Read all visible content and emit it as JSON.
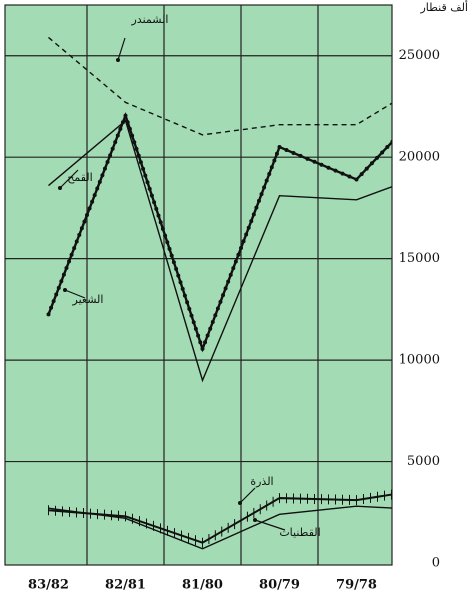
{
  "chart_data": {
    "type": "line",
    "y_axis_label": "ألف قنطار",
    "categories": [
      "83/82",
      "82/81",
      "81/80",
      "80/79",
      "79/78",
      null
    ],
    "series": [
      {
        "name": "الشمندر",
        "color": "#111111",
        "linestyle": "dashed",
        "values": [
          25900,
          22700,
          21100,
          21600,
          21600,
          23900
        ]
      },
      {
        "name": "القمح",
        "color": "#111111",
        "linestyle": "solid",
        "values": [
          18600,
          21800,
          9000,
          18100,
          17900,
          19300
        ]
      },
      {
        "name": "الشعير",
        "color": "#111111",
        "linestyle": "dotted",
        "values": [
          12250,
          22050,
          10550,
          20500,
          18900,
          22900
        ]
      },
      {
        "name": "الذرة",
        "color": "#111111",
        "linestyle": "crossed",
        "values": [
          2600,
          2300,
          1000,
          3200,
          3100,
          3700
        ]
      },
      {
        "name": "القطنيات",
        "color": "#111111",
        "linestyle": "solid",
        "values": [
          2700,
          2200,
          700,
          2400,
          2800,
          2600
        ]
      }
    ],
    "ylim": [
      0,
      27500
    ],
    "yticks": [
      0,
      5000,
      10000,
      15000,
      20000,
      25000
    ],
    "grid": true,
    "background": "#a3dcb4"
  }
}
